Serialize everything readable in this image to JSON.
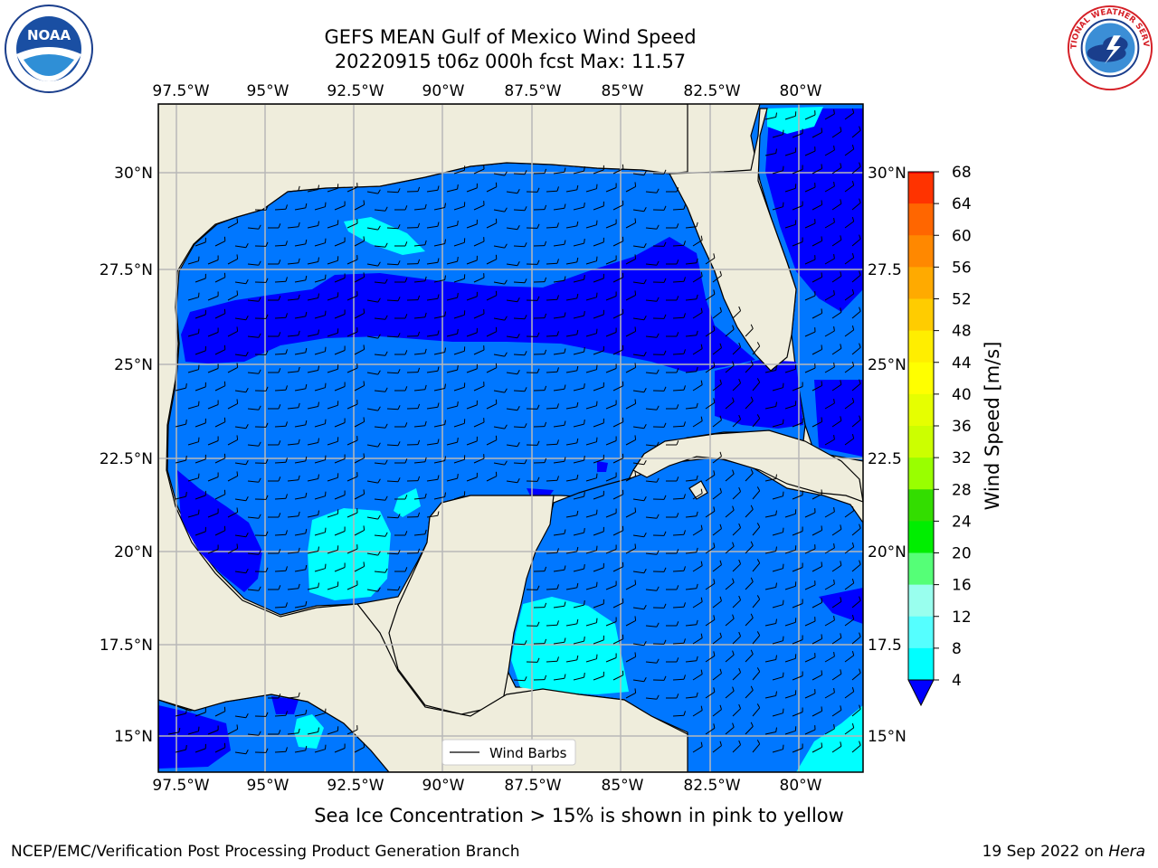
{
  "title": {
    "line1": "GEFS MEAN Gulf of Mexico Wind Speed",
    "line2": "20220915 t06z 000h fcst   Max: 11.57"
  },
  "logos": {
    "left": {
      "icon": "noaa-logo",
      "text": "NOAA"
    },
    "right": {
      "icon": "nws-logo",
      "text": "NATIONAL WEATHER SERVICE"
    }
  },
  "map": {
    "lon_labels": [
      "97.5°W",
      "95°W",
      "92.5°W",
      "90°W",
      "87.5°W",
      "85°W",
      "82.5°W",
      "80°W"
    ],
    "lat_labels": [
      "30°N",
      "27.5°N",
      "25°N",
      "22.5°N",
      "20°N",
      "17.5°N",
      "15°N"
    ],
    "lat_labels_right": [
      "30°N",
      "27.5",
      "25°N",
      "22.5",
      "20°N",
      "17.5",
      "15°N"
    ],
    "legend_label": "Wind Barbs",
    "land_color": "#efeddc",
    "max_value": "11.57"
  },
  "colorbar": {
    "label": "Wind Speed [m/s]",
    "ticks": [
      "68",
      "64",
      "60",
      "56",
      "52",
      "48",
      "44",
      "40",
      "36",
      "32",
      "28",
      "24",
      "20",
      "16",
      "12",
      "8",
      "4"
    ],
    "colors": [
      "#ff0000",
      "#ff3300",
      "#ff6600",
      "#ff8800",
      "#ffaa00",
      "#ffcc00",
      "#ffee00",
      "#ffff00",
      "#e6ff00",
      "#ccff00",
      "#99ff00",
      "#33dd00",
      "#00ee00",
      "#55ff77",
      "#99ffee",
      "#55ffff",
      "#00ffff",
      "#0077ff"
    ],
    "extend_color": "#0000ff"
  },
  "footer": {
    "note": "Sea Ice Concentration > 15% is shown in pink to yellow",
    "left": "NCEP/EMC/Verification Post Processing Product Generation Branch",
    "right_date": "19 Sep 2022 on ",
    "right_host": "Hera"
  }
}
